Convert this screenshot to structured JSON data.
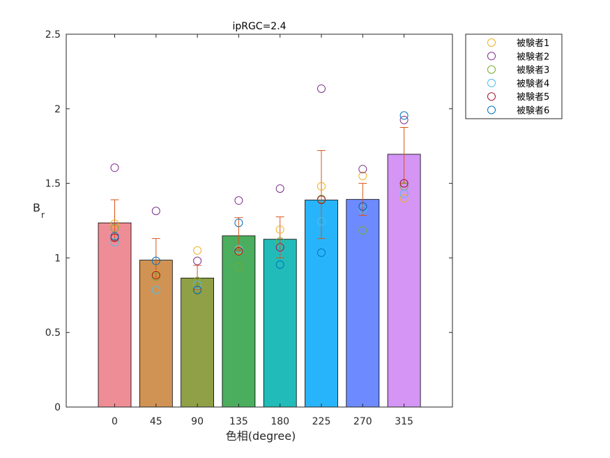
{
  "chart_data": {
    "type": "bar",
    "title": "ipRGC=2.4",
    "xlabel": "色相(degree)",
    "ylabel_main": "B",
    "ylabel_sub": "r",
    "ylim": [
      0,
      2.5
    ],
    "yticks": [
      "0",
      "0.5",
      "1",
      "1.5",
      "2",
      "2.5"
    ],
    "ytick_values": [
      0,
      0.5,
      1,
      1.5,
      2,
      2.5
    ],
    "categories": [
      "0",
      "45",
      "90",
      "135",
      "180",
      "225",
      "270",
      "315"
    ],
    "values": [
      1.235,
      0.985,
      0.865,
      1.148,
      1.125,
      1.388,
      1.392,
      1.695
    ],
    "bar_colors": [
      "#EF8D96",
      "#D09354",
      "#8FA046",
      "#4BAE5E",
      "#21BCB9",
      "#28B4FA",
      "#6D8BFF",
      "#D495F5"
    ],
    "error_upper": [
      1.39,
      1.13,
      0.95,
      1.27,
      1.275,
      1.72,
      1.5,
      1.875
    ],
    "error_lower": [
      1.115,
      0.87,
      0.79,
      1.05,
      1.0,
      1.13,
      1.285,
      1.5
    ],
    "error_color": "#D95319",
    "grid": false,
    "legend_position": "outside-top-right",
    "series": [
      {
        "name": "被験者1",
        "color": "#EDB120",
        "values": [
          1.23,
          0.89,
          1.05,
          1.05,
          1.19,
          1.48,
          1.55,
          1.4
        ]
      },
      {
        "name": "被験者2",
        "color": "#7E2F8E",
        "values": [
          1.605,
          1.315,
          0.98,
          1.385,
          1.465,
          2.135,
          1.595,
          1.925
        ]
      },
      {
        "name": "被験者3",
        "color": "#77AC30",
        "values": [
          1.2,
          0.875,
          0.845,
          0.94,
          1.11,
          1.395,
          1.185,
          1.48
        ]
      },
      {
        "name": "被験者4",
        "color": "#4DBEEE",
        "values": [
          1.105,
          0.785,
          0.82,
          1.06,
          1.065,
          1.245,
          1.325,
          1.43
        ]
      },
      {
        "name": "被験者5",
        "color": "#A2142F",
        "values": [
          1.135,
          0.885,
          0.785,
          1.045,
          1.07,
          1.39,
          1.345,
          1.5
        ]
      },
      {
        "name": "被験者6",
        "color": "#0072BD",
        "values": [
          1.145,
          0.98,
          0.785,
          1.235,
          0.955,
          1.035,
          1.345,
          1.955
        ]
      }
    ]
  }
}
